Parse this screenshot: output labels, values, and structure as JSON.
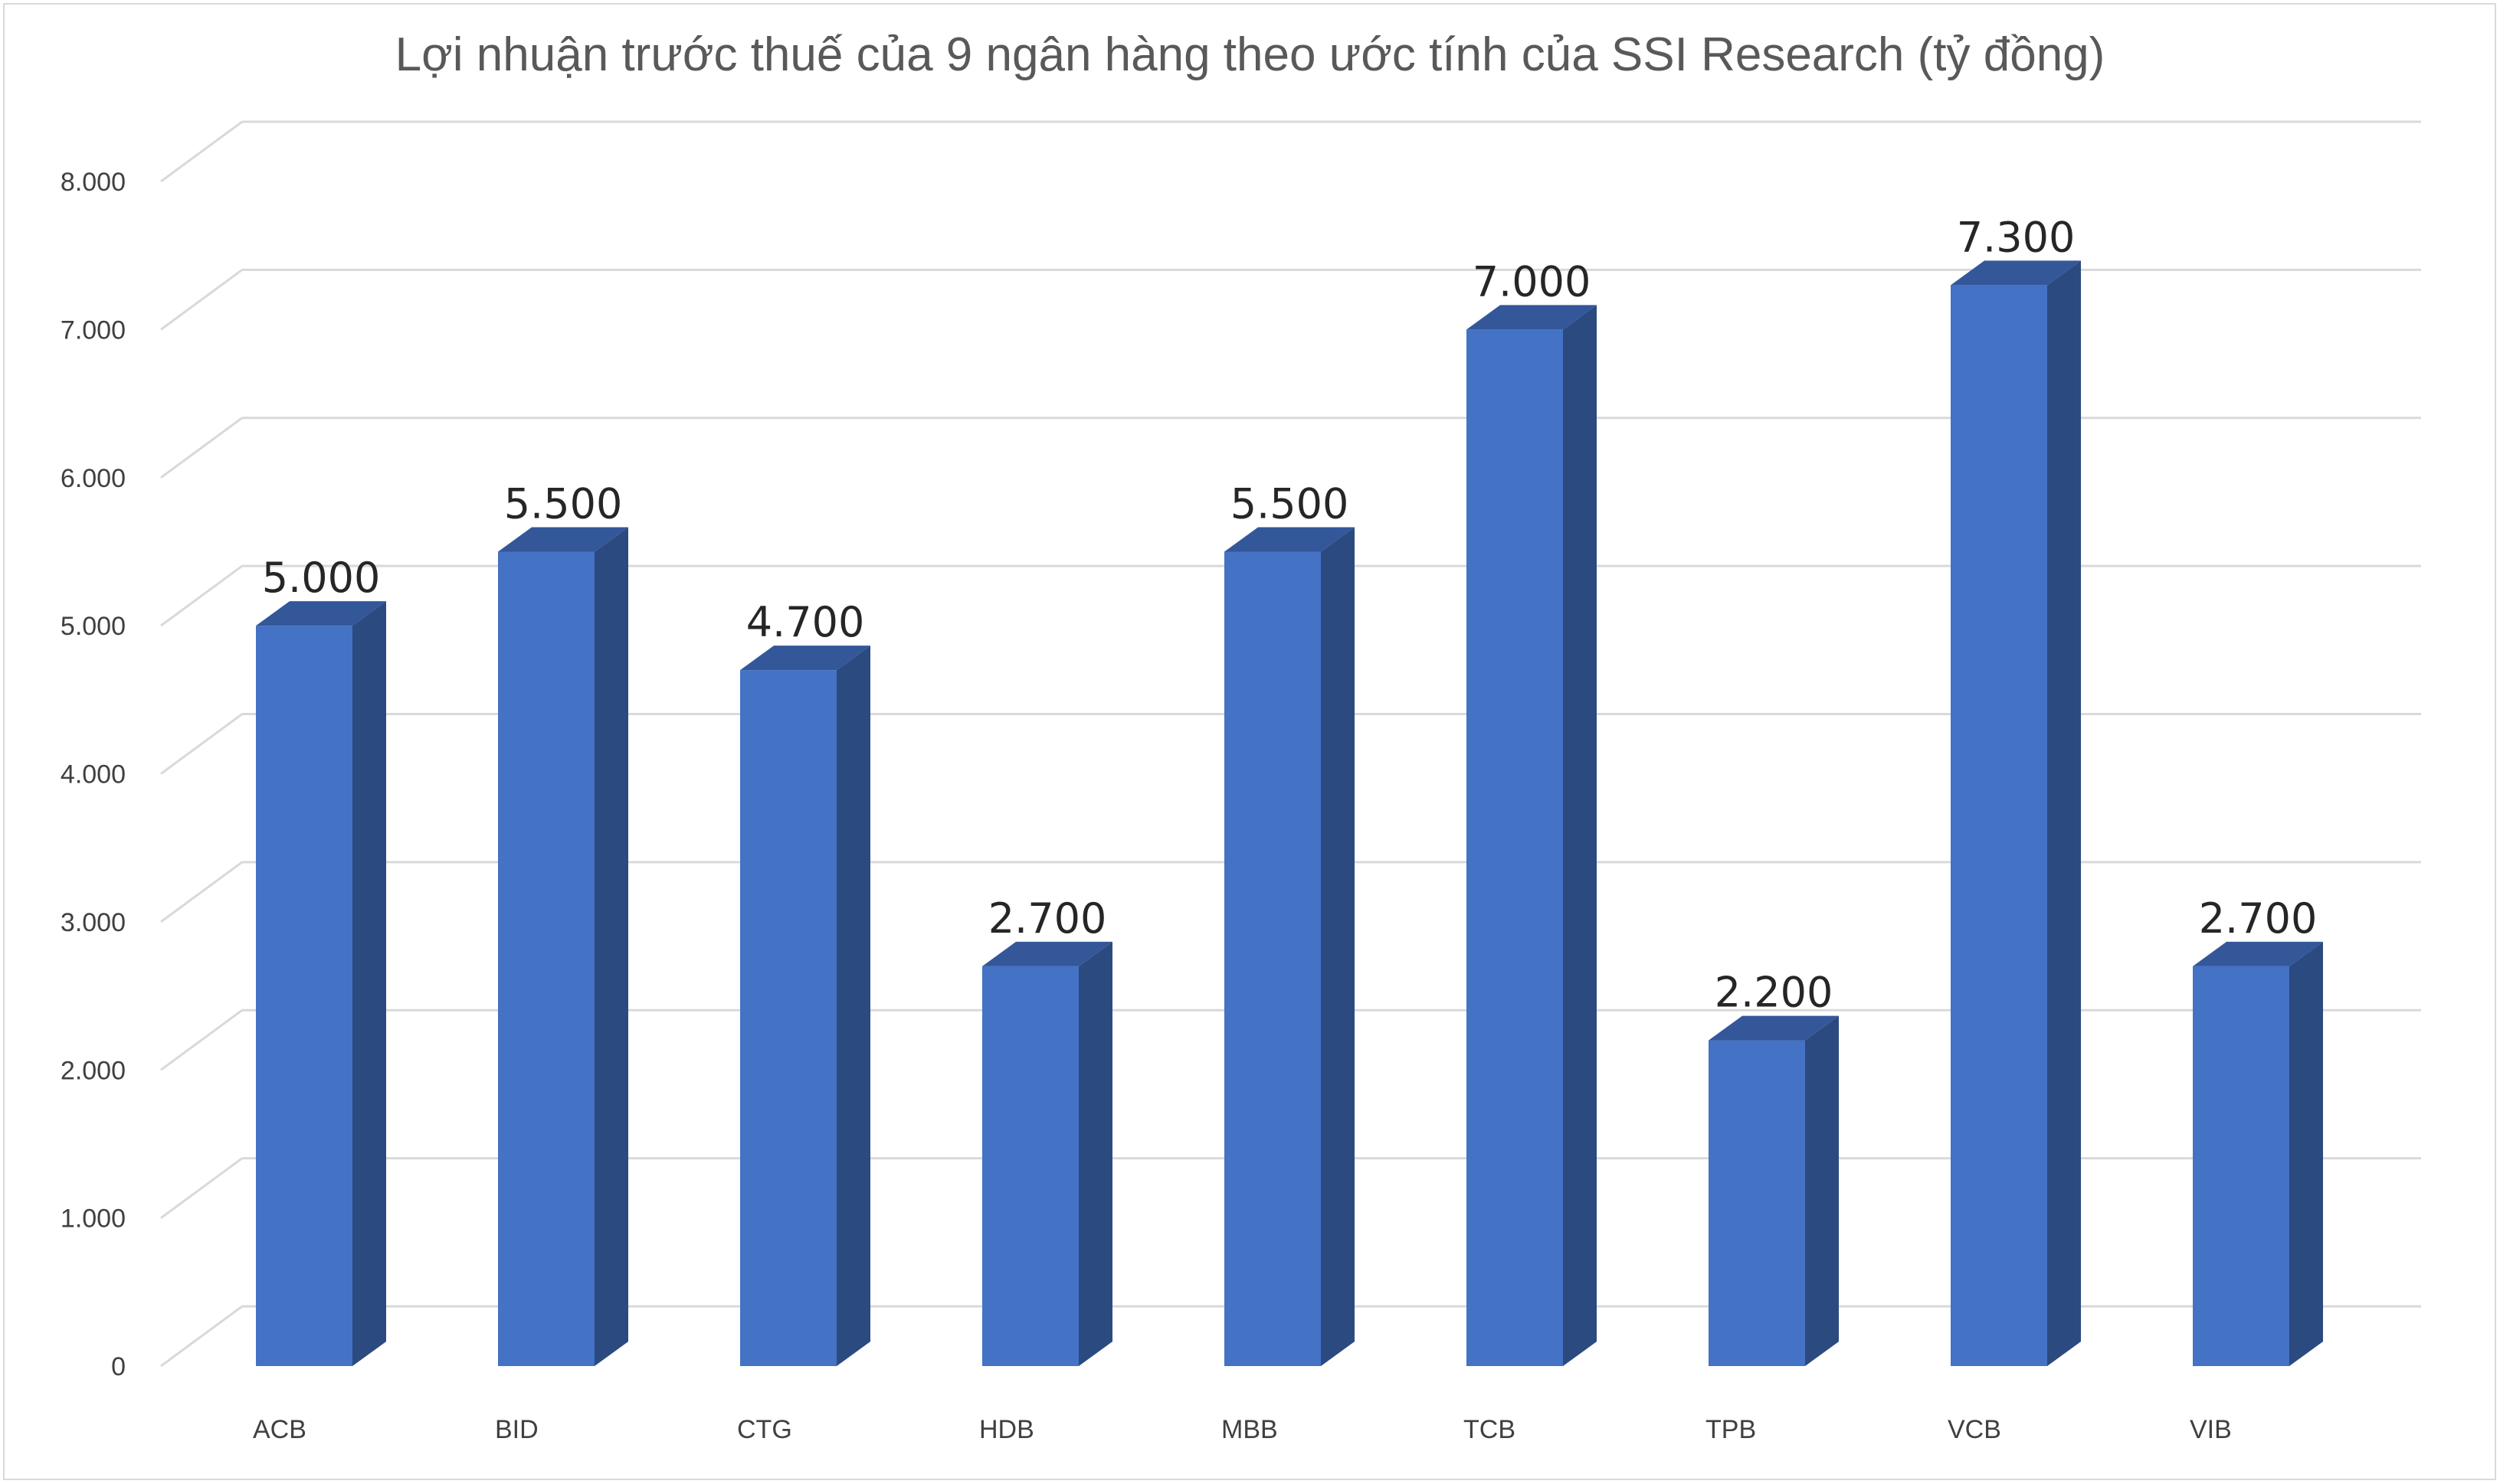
{
  "chart_data": {
    "type": "bar",
    "title": "Lợi nhuận trước thuế của 9 ngân hàng theo ước tính của SSI Research (tỷ đồng)",
    "categories": [
      "ACB",
      "BID",
      "CTG",
      "HDB",
      "MBB",
      "TCB",
      "TPB",
      "VCB",
      "VIB"
    ],
    "values": [
      5000,
      5500,
      4700,
      2700,
      5500,
      7000,
      2200,
      7300,
      2700
    ],
    "value_labels": [
      "5.000",
      "5.500",
      "4.700",
      "2.700",
      "5.500",
      "7.000",
      "2.200",
      "7.300",
      "2.700"
    ],
    "y_ticks": [
      0,
      1000,
      2000,
      3000,
      4000,
      5000,
      6000,
      7000,
      8000
    ],
    "y_tick_labels": [
      "0",
      "1.000",
      "2.000",
      "3.000",
      "4.000",
      "5.000",
      "6.000",
      "7.000",
      "8.000"
    ],
    "ylim": [
      0,
      8000
    ],
    "grid": true,
    "legend": "none",
    "style": "3d-column"
  },
  "colors": {
    "bar_front": "#4472c4",
    "bar_side": "#2b4a80",
    "bar_top": "#34579a",
    "gridline": "#d9d9d9",
    "title": "#595959",
    "axis_text": "#404040",
    "data_label": "#262626"
  }
}
